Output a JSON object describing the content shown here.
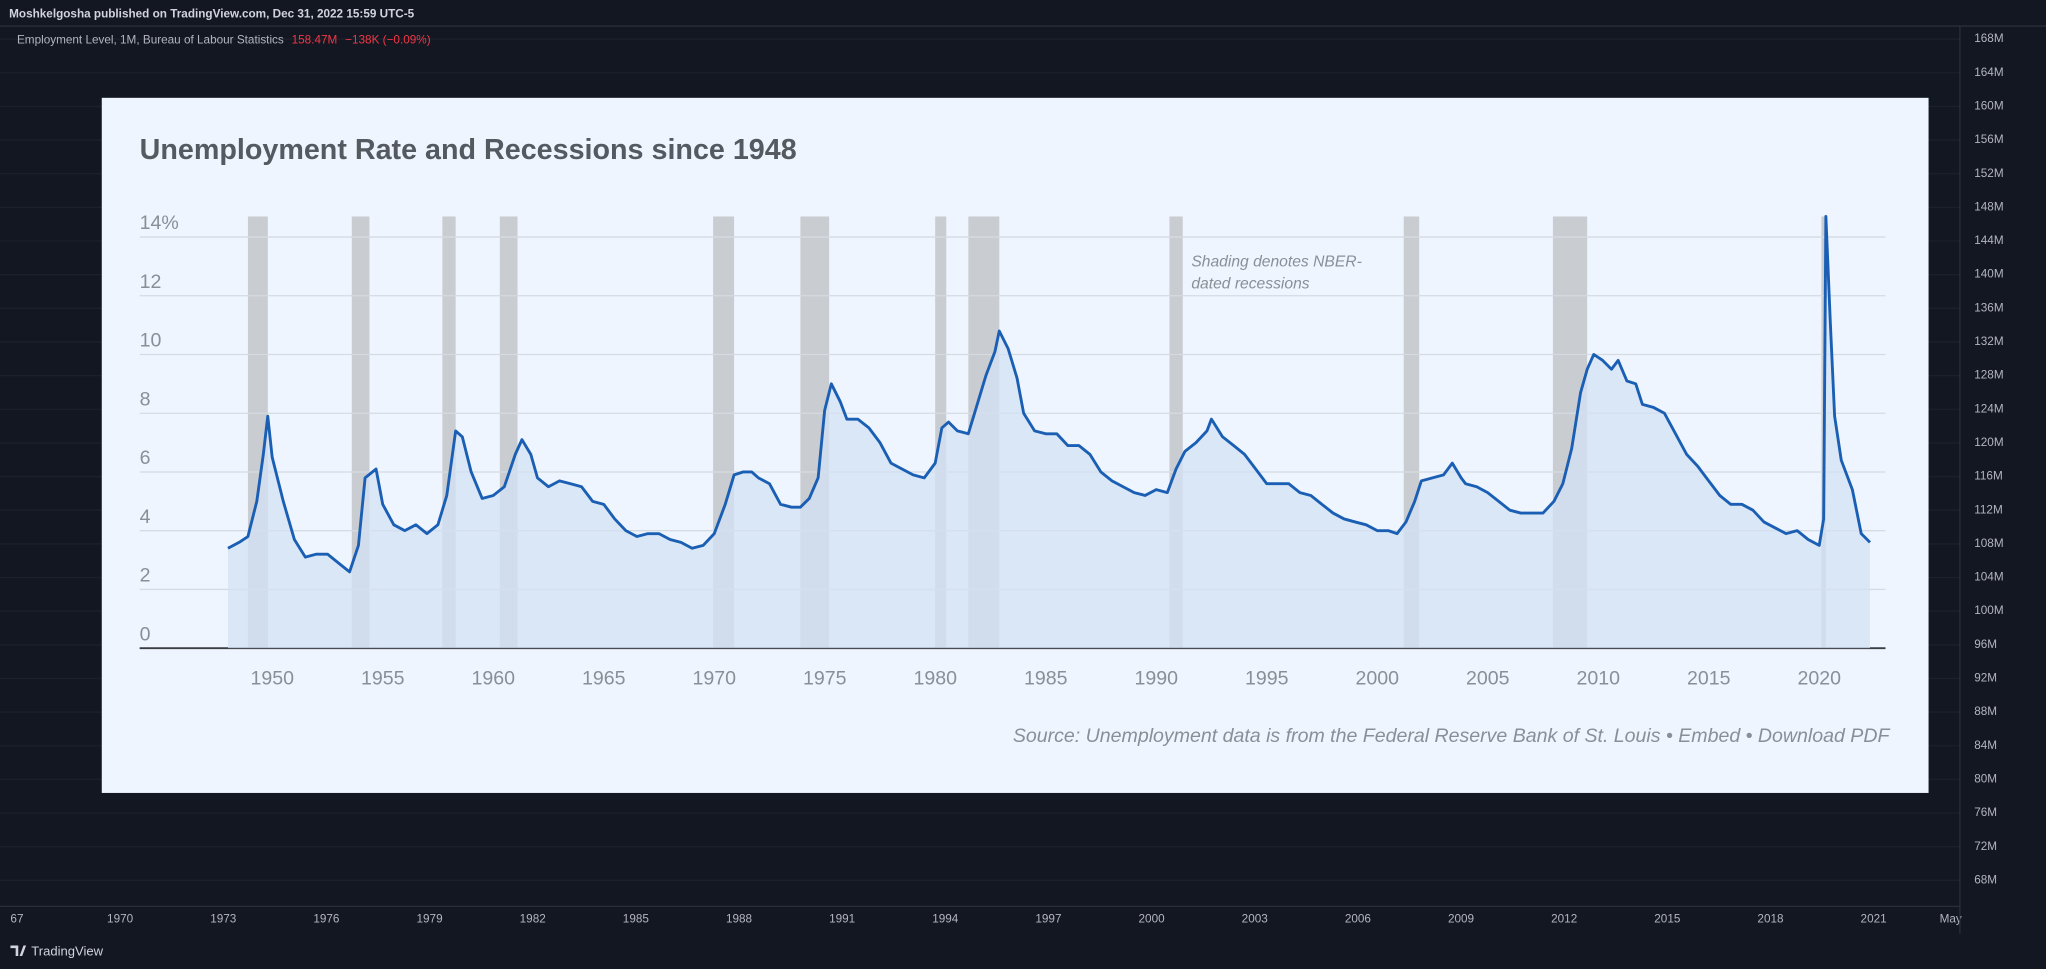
{
  "header": {
    "published": "Moshkelgosha published on TradingView.com, Dec 31, 2022 15:59 UTC-5",
    "indicator": "Employment Level, 1M, Bureau of Labour Statistics",
    "last": "158.47M",
    "change": "−138K (−0.09%)"
  },
  "footer": {
    "brand": "TradingView"
  },
  "chart_data": [
    {
      "type": "line",
      "title": "Unemployment Rate and Recessions since 1948",
      "annotation": [
        "Shading denotes NBER-",
        "dated recessions"
      ],
      "source": "Source: Unemployment data is from the Federal Reserve Bank of St. Louis • Embed • Download PDF",
      "color": "#1a5fb4",
      "fill": "#d3e2f4",
      "recession_color": "#c9ccd1",
      "xlim": [
        1944,
        2023
      ],
      "xticks": [
        1950,
        1955,
        1960,
        1965,
        1970,
        1975,
        1980,
        1985,
        1990,
        1995,
        2000,
        2005,
        2010,
        2015,
        2020
      ],
      "ylim": [
        0,
        14.7
      ],
      "yticks": [
        0,
        2,
        4,
        6,
        8,
        10,
        12,
        {
          "value": 14,
          "label": "14%"
        }
      ],
      "grid": true,
      "recessions": [
        [
          1948.9,
          1949.8
        ],
        [
          1953.6,
          1954.4
        ],
        [
          1957.7,
          1958.3
        ],
        [
          1960.3,
          1961.1
        ],
        [
          1969.95,
          1970.9
        ],
        [
          1973.9,
          1975.2
        ],
        [
          1980.0,
          1980.5
        ],
        [
          1981.5,
          1982.9
        ],
        [
          1990.6,
          1991.2
        ],
        [
          2001.2,
          2001.9
        ],
        [
          2007.95,
          2009.5
        ],
        [
          2020.1,
          2020.3
        ]
      ],
      "x": [
        1948.0,
        1948.5,
        1948.9,
        1949.3,
        1949.6,
        1949.8,
        1950.0,
        1950.5,
        1951.0,
        1951.5,
        1952.0,
        1952.5,
        1953.0,
        1953.5,
        1953.9,
        1954.2,
        1954.7,
        1955.0,
        1955.5,
        1956.0,
        1956.5,
        1957.0,
        1957.5,
        1957.9,
        1958.3,
        1958.6,
        1959.0,
        1959.5,
        1960.0,
        1960.5,
        1961.0,
        1961.3,
        1961.7,
        1962.0,
        1962.5,
        1963.0,
        1963.5,
        1964.0,
        1964.5,
        1965.0,
        1965.5,
        1966.0,
        1966.5,
        1967.0,
        1967.5,
        1968.0,
        1968.5,
        1969.0,
        1969.5,
        1970.0,
        1970.5,
        1970.9,
        1971.3,
        1971.7,
        1972.0,
        1972.5,
        1973.0,
        1973.5,
        1973.9,
        1974.3,
        1974.7,
        1975.0,
        1975.3,
        1975.7,
        1976.0,
        1976.5,
        1977.0,
        1977.5,
        1978.0,
        1978.5,
        1979.0,
        1979.5,
        1980.0,
        1980.3,
        1980.6,
        1981.0,
        1981.5,
        1981.9,
        1982.3,
        1982.7,
        1982.9,
        1983.3,
        1983.7,
        1984.0,
        1984.5,
        1985.0,
        1985.5,
        1986.0,
        1986.5,
        1987.0,
        1987.5,
        1988.0,
        1988.5,
        1989.0,
        1989.5,
        1990.0,
        1990.5,
        1990.9,
        1991.3,
        1991.8,
        1992.3,
        1992.5,
        1993.0,
        1993.5,
        1994.0,
        1994.5,
        1995.0,
        1995.5,
        1996.0,
        1996.5,
        1997.0,
        1997.5,
        1998.0,
        1998.5,
        1999.0,
        1999.5,
        2000.0,
        2000.5,
        2000.9,
        2001.3,
        2001.7,
        2002.0,
        2002.5,
        2003.0,
        2003.4,
        2003.8,
        2004.0,
        2004.5,
        2005.0,
        2005.5,
        2006.0,
        2006.5,
        2007.0,
        2007.5,
        2008.0,
        2008.4,
        2008.8,
        2009.2,
        2009.5,
        2009.8,
        2010.2,
        2010.6,
        2010.9,
        2011.3,
        2011.7,
        2012.0,
        2012.5,
        2013.0,
        2013.5,
        2014.0,
        2014.5,
        2015.0,
        2015.5,
        2016.0,
        2016.5,
        2017.0,
        2017.5,
        2018.0,
        2018.5,
        2019.0,
        2019.5,
        2020.0,
        2020.2,
        2020.3,
        2020.5,
        2020.7,
        2021.0,
        2021.5,
        2021.9,
        2022.3
      ],
      "values": [
        3.4,
        3.6,
        3.8,
        5.0,
        6.6,
        7.9,
        6.5,
        5.0,
        3.7,
        3.1,
        3.2,
        3.2,
        2.9,
        2.6,
        3.5,
        5.8,
        6.1,
        4.9,
        4.2,
        4.0,
        4.2,
        3.9,
        4.2,
        5.2,
        7.4,
        7.2,
        6.0,
        5.1,
        5.2,
        5.5,
        6.6,
        7.1,
        6.6,
        5.8,
        5.5,
        5.7,
        5.6,
        5.5,
        5.0,
        4.9,
        4.4,
        4.0,
        3.8,
        3.9,
        3.9,
        3.7,
        3.6,
        3.4,
        3.5,
        3.9,
        4.9,
        5.9,
        6.0,
        6.0,
        5.8,
        5.6,
        4.9,
        4.8,
        4.8,
        5.1,
        5.8,
        8.1,
        9.0,
        8.4,
        7.8,
        7.8,
        7.5,
        7.0,
        6.3,
        6.1,
        5.9,
        5.8,
        6.3,
        7.5,
        7.7,
        7.4,
        7.3,
        8.3,
        9.3,
        10.1,
        10.8,
        10.2,
        9.2,
        8.0,
        7.4,
        7.3,
        7.3,
        6.9,
        6.9,
        6.6,
        6.0,
        5.7,
        5.5,
        5.3,
        5.2,
        5.4,
        5.3,
        6.1,
        6.7,
        7.0,
        7.4,
        7.8,
        7.2,
        6.9,
        6.6,
        6.1,
        5.6,
        5.6,
        5.6,
        5.3,
        5.2,
        4.9,
        4.6,
        4.4,
        4.3,
        4.2,
        4.0,
        4.0,
        3.9,
        4.3,
        5.0,
        5.7,
        5.8,
        5.9,
        6.3,
        5.8,
        5.6,
        5.5,
        5.3,
        5.0,
        4.7,
        4.6,
        4.6,
        4.6,
        5.0,
        5.6,
        6.8,
        8.7,
        9.5,
        10.0,
        9.8,
        9.5,
        9.8,
        9.1,
        9.0,
        8.3,
        8.2,
        8.0,
        7.3,
        6.6,
        6.2,
        5.7,
        5.2,
        4.9,
        4.9,
        4.7,
        4.3,
        4.1,
        3.9,
        4.0,
        3.7,
        3.5,
        4.4,
        14.7,
        11.1,
        7.9,
        6.4,
        5.4,
        3.9,
        3.6
      ]
    },
    {
      "type": "axes",
      "categories": [
        "67",
        "1970",
        "1973",
        "1976",
        "1979",
        "1982",
        "1985",
        "1988",
        "1991",
        "1994",
        "1997",
        "2000",
        "2003",
        "2006",
        "2009",
        "2012",
        "2015",
        "2018",
        "2021",
        "May"
      ],
      "ylim": [
        64900000,
        169550000
      ],
      "yticks": [
        {
          "value": 68000000,
          "label": "68M"
        },
        {
          "value": 72000000,
          "label": "72M"
        },
        {
          "value": 76000000,
          "label": "76M"
        },
        {
          "value": 80000000,
          "label": "80M"
        },
        {
          "value": 84000000,
          "label": "84M"
        },
        {
          "value": 88000000,
          "label": "88M"
        },
        {
          "value": 92000000,
          "label": "92M"
        },
        {
          "value": 96000000,
          "label": "96M"
        },
        {
          "value": 100000000,
          "label": "100M"
        },
        {
          "value": 104000000,
          "label": "104M"
        },
        {
          "value": 108000000,
          "label": "108M"
        },
        {
          "value": 112000000,
          "label": "112M"
        },
        {
          "value": 116000000,
          "label": "116M"
        },
        {
          "value": 120000000,
          "label": "120M"
        },
        {
          "value": 124000000,
          "label": "124M"
        },
        {
          "value": 128000000,
          "label": "128M"
        },
        {
          "value": 132000000,
          "label": "132M"
        },
        {
          "value": 136000000,
          "label": "136M"
        },
        {
          "value": 140000000,
          "label": "140M"
        },
        {
          "value": 144000000,
          "label": "144M"
        },
        {
          "value": 148000000,
          "label": "148M"
        },
        {
          "value": 152000000,
          "label": "152M"
        },
        {
          "value": 156000000,
          "label": "156M"
        },
        {
          "value": 160000000,
          "label": "160M"
        },
        {
          "value": 164000000,
          "label": "164M"
        },
        {
          "value": 168000000,
          "label": "168M"
        }
      ],
      "grid": true
    }
  ]
}
